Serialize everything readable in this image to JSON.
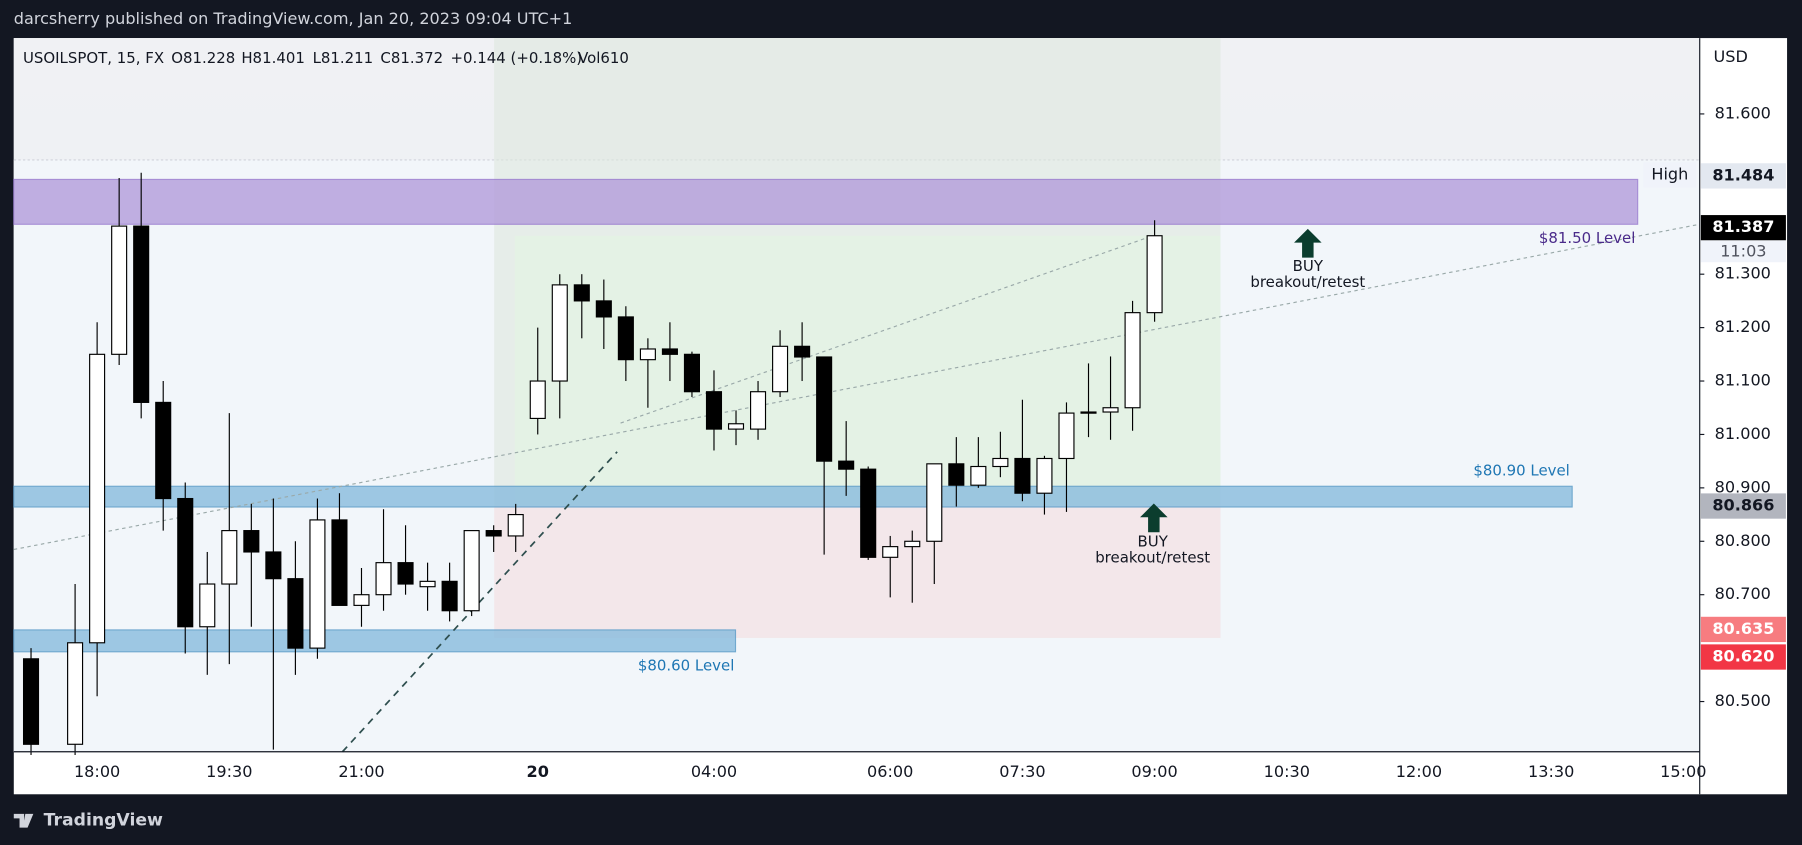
{
  "chart_data": {
    "type": "candlestick",
    "title": "darcsherry published on TradingView.com, Jan 20, 2023 09:04 UTC+1",
    "legend_items": [
      "USOILSPOT, 15, FX",
      "O81.228",
      "H81.401",
      "L81.211",
      "C81.372",
      "+0.144 (+0.18%)",
      "Vol610"
    ],
    "currency": "USD",
    "categories": [
      null,
      null,
      null,
      "18:00",
      null,
      null,
      null,
      null,
      null,
      "19:30",
      null,
      null,
      null,
      null,
      null,
      "21:00",
      null,
      null,
      null,
      null,
      null,
      null,
      null,
      "20",
      null,
      null,
      null,
      null,
      null,
      null,
      null,
      "04:00",
      null,
      null,
      null,
      null,
      null,
      null,
      null,
      "06:00",
      null,
      null,
      null,
      null,
      null,
      "07:30",
      null,
      null,
      null,
      null,
      null,
      "09:00",
      null,
      null,
      null,
      null,
      null,
      "10:30",
      null,
      null,
      null,
      null,
      null,
      "12:00",
      null,
      null,
      null,
      null,
      null,
      "13:30",
      null,
      null,
      null,
      null,
      null,
      "15:00"
    ],
    "open": [
      80.58,
      null,
      80.42,
      80.61,
      81.15,
      81.39,
      81.06,
      80.88,
      80.64,
      80.72,
      80.82,
      80.78,
      80.73,
      80.6,
      80.84,
      80.68,
      80.7,
      80.76,
      80.715,
      80.725,
      80.67,
      80.82,
      80.81,
      81.03,
      81.1,
      81.28,
      81.25,
      81.22,
      81.14,
      81.16,
      81.15,
      81.08,
      81.01,
      81.01,
      81.08,
      81.165,
      81.145,
      80.95,
      80.935,
      80.77,
      80.79,
      80.8,
      80.945,
      80.905,
      80.94,
      80.955,
      80.89,
      80.955,
      81.04,
      81.042,
      81.05,
      81.228,
      null,
      null,
      null,
      null,
      null,
      null,
      null,
      null,
      null,
      null,
      null,
      null,
      null,
      null,
      null,
      null,
      null,
      null,
      null,
      null,
      null,
      null,
      null,
      null
    ],
    "high": [
      80.6,
      null,
      80.72,
      81.21,
      81.48,
      81.49,
      81.1,
      80.91,
      80.78,
      81.04,
      80.87,
      80.88,
      80.8,
      80.88,
      80.89,
      80.75,
      80.86,
      80.83,
      80.76,
      80.76,
      80.82,
      80.83,
      80.87,
      81.2,
      81.3,
      81.3,
      81.29,
      81.24,
      81.18,
      81.21,
      81.155,
      81.12,
      81.045,
      81.1,
      81.195,
      81.21,
      81.145,
      81.025,
      80.94,
      80.81,
      80.82,
      80.945,
      80.995,
      80.995,
      81.005,
      81.065,
      80.96,
      81.06,
      81.133,
      81.146,
      81.25,
      81.401,
      null,
      null,
      null,
      null,
      null,
      null,
      null,
      null,
      null,
      null,
      null,
      null,
      null,
      null,
      null,
      null,
      null,
      null,
      null,
      null,
      null,
      null,
      null,
      null
    ],
    "low": [
      80.4,
      null,
      80.4,
      80.51,
      81.13,
      81.03,
      80.82,
      80.59,
      80.55,
      80.57,
      80.64,
      80.41,
      80.55,
      80.58,
      80.68,
      80.64,
      80.67,
      80.7,
      80.67,
      80.65,
      80.66,
      80.78,
      80.78,
      81.0,
      81.03,
      81.18,
      81.16,
      81.1,
      81.05,
      81.1,
      81.07,
      80.97,
      80.98,
      80.99,
      81.07,
      81.1,
      80.775,
      80.885,
      80.765,
      80.695,
      80.685,
      80.72,
      80.865,
      80.9,
      80.92,
      80.875,
      80.85,
      80.855,
      80.995,
      80.99,
      81.007,
      81.211,
      null,
      null,
      null,
      null,
      null,
      null,
      null,
      null,
      null,
      null,
      null,
      null,
      null,
      null,
      null,
      null,
      null,
      null,
      null,
      null,
      null,
      null,
      null,
      null
    ],
    "close": [
      80.42,
      null,
      80.61,
      81.15,
      81.39,
      81.06,
      80.88,
      80.64,
      80.72,
      80.82,
      80.78,
      80.73,
      80.6,
      80.84,
      80.68,
      80.7,
      80.76,
      80.72,
      80.725,
      80.67,
      80.82,
      80.81,
      80.85,
      81.1,
      81.28,
      81.25,
      81.22,
      81.14,
      81.16,
      81.15,
      81.08,
      81.01,
      81.02,
      81.08,
      81.165,
      81.145,
      80.95,
      80.935,
      80.77,
      80.79,
      80.8,
      80.945,
      80.905,
      80.94,
      80.955,
      80.89,
      80.955,
      81.04,
      81.042,
      81.05,
      81.228,
      81.372,
      null,
      null,
      null,
      null,
      null,
      null,
      null,
      null,
      null,
      null,
      null,
      null,
      null,
      null,
      null,
      null,
      null,
      null,
      null,
      null,
      null,
      null,
      null,
      null
    ],
    "up_color": "#ffffff",
    "down_color": "#000000",
    "ylim": [
      80.406,
      81.742
    ],
    "yticks": [
      {
        "value": 81.6,
        "label": "81.600"
      },
      {
        "value": 81.3,
        "label": "81.300"
      },
      {
        "value": 81.2,
        "label": "81.200"
      },
      {
        "value": 81.1,
        "label": "81.100"
      },
      {
        "value": 81.0,
        "label": "81.000"
      },
      {
        "value": 80.9,
        "label": "80.900"
      },
      {
        "value": 80.8,
        "label": "80.800"
      },
      {
        "value": 80.7,
        "label": "80.700"
      },
      {
        "value": 80.5,
        "label": "80.500"
      }
    ],
    "price_labels": [
      {
        "value": 81.484,
        "label": "81.484",
        "color": "#e3e8f0",
        "text_color": "#131722"
      },
      {
        "value": 81.387,
        "label": "81.387",
        "color": "#000000",
        "text_color": "#ffffff"
      },
      {
        "value": 80.866,
        "label": "80.866",
        "color": "#b2b5be",
        "text_color": "#131722"
      },
      {
        "value": 80.635,
        "label": "80.635",
        "color": "#f77c80",
        "text_color": "#ffffff"
      },
      {
        "value": 80.62,
        "label": "80.620",
        "color": "#f23645",
        "text_color": "#ffffff"
      }
    ],
    "high_label": "High",
    "countdown": "11:03",
    "levels": [
      "$81.50 Level",
      "$80.90 Level",
      "$80.60 Level"
    ],
    "signals": [
      {
        "label": "BUY",
        "note": "breakout/retest"
      },
      {
        "label": "BUY",
        "note": "breakout/retest"
      }
    ],
    "brand": "TradingView"
  }
}
